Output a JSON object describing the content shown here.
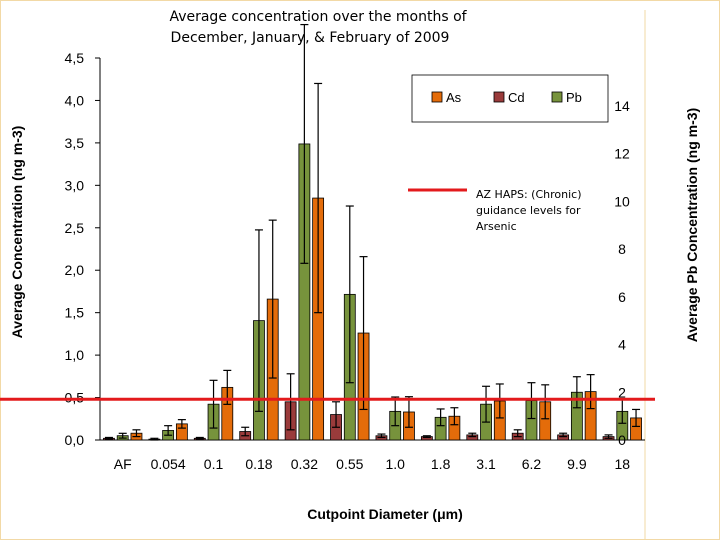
{
  "chart_data": {
    "type": "bar",
    "title_line1": "Average concentration over the months of",
    "title_line2": "December, January, & February of 2009",
    "xlabel": "Cutpoint Diameter (μm)",
    "ylabel": "Average Concentration (ng m-3)",
    "y2label": "Average Pb Concentration (ng m-3)",
    "categories": [
      "AF",
      "0.054",
      "0.1",
      "0.18",
      "0.32",
      "0.55",
      "1.0",
      "1.8",
      "3.1",
      "6.2",
      "9.9",
      "18"
    ],
    "ylim": [
      0,
      4.5
    ],
    "y_ticks": [
      "0,0",
      "0,5",
      "1,0",
      "1,5",
      "2,0",
      "2,5",
      "3,0",
      "3,5",
      "4,0",
      "4,5"
    ],
    "y2lim": [
      0,
      16
    ],
    "y2_ticks": [
      "0",
      "2",
      "4",
      "6",
      "8",
      "10",
      "12",
      "14"
    ],
    "series": [
      {
        "name": "Cd",
        "axis": "left",
        "color": "#9a3b3b",
        "values": [
          0.02,
          0.01,
          0.02,
          0.1,
          0.45,
          0.3,
          0.05,
          0.04,
          0.06,
          0.08,
          0.06,
          0.04
        ],
        "errors": [
          0.01,
          0.01,
          0.01,
          0.05,
          0.33,
          0.15,
          0.02,
          0.01,
          0.02,
          0.04,
          0.02,
          0.02
        ]
      },
      {
        "name": "Pb",
        "axis": "right",
        "color": "#77933c",
        "values": [
          0.18,
          0.4,
          1.5,
          5.0,
          12.4,
          6.1,
          1.2,
          0.95,
          1.5,
          1.65,
          2.0,
          1.2
        ],
        "errors": [
          0.1,
          0.2,
          1.0,
          3.8,
          5.0,
          3.7,
          0.6,
          0.35,
          0.75,
          0.75,
          0.65,
          0.5
        ]
      },
      {
        "name": "As",
        "axis": "left",
        "color": "#e46c0a",
        "values": [
          0.08,
          0.19,
          0.62,
          1.66,
          2.85,
          1.26,
          0.33,
          0.28,
          0.46,
          0.45,
          0.57,
          0.26
        ],
        "errors": [
          0.04,
          0.05,
          0.2,
          0.93,
          1.35,
          0.9,
          0.18,
          0.1,
          0.2,
          0.2,
          0.2,
          0.1
        ]
      }
    ],
    "legend_order": [
      "As",
      "Cd",
      "Pb"
    ],
    "legend_position": "top-right",
    "reference_line": {
      "value": 0.48,
      "color": "#e31a1c",
      "label": [
        "AZ HAPS: (Chronic)",
        "guidance levels for",
        "Arsenic"
      ]
    },
    "grid": false
  }
}
